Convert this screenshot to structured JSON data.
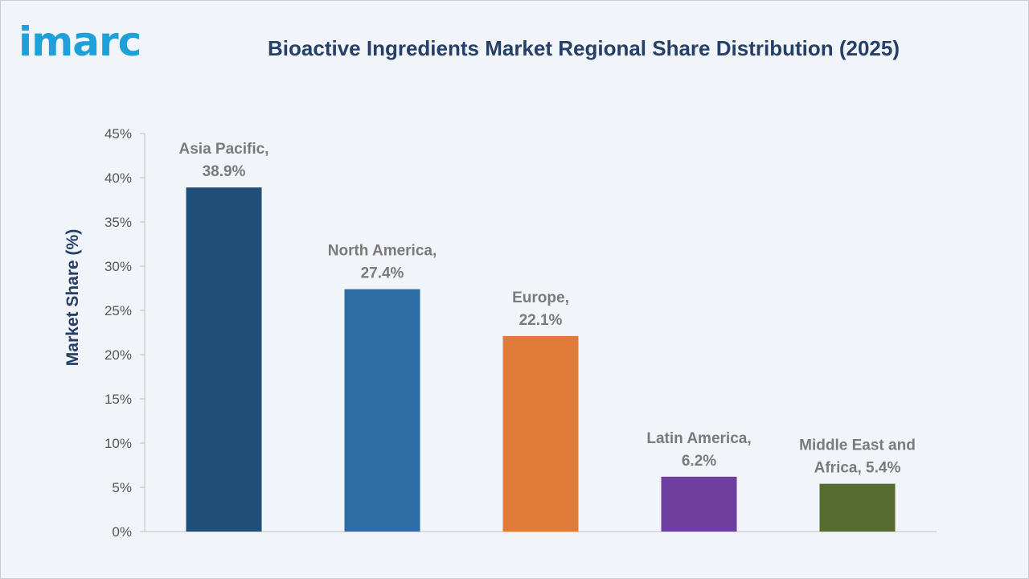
{
  "brand": {
    "logo_text": "imarc"
  },
  "chart_data": {
    "type": "bar",
    "title": "Bioactive Ingredients Market Regional Share Distribution (2025)",
    "xlabel": "",
    "ylabel": "Market Share (%)",
    "ylim": [
      0,
      45
    ],
    "yticks": [
      0,
      5,
      10,
      15,
      20,
      25,
      30,
      35,
      40,
      45
    ],
    "ytick_labels": [
      "0%",
      "5%",
      "10%",
      "15%",
      "20%",
      "25%",
      "30%",
      "35%",
      "40%",
      "45%"
    ],
    "grid": false,
    "legend": "none",
    "categories": [
      "Asia Pacific",
      "North America",
      "Europe",
      "Latin America",
      "Middle East and Africa"
    ],
    "values": [
      38.9,
      27.4,
      22.1,
      6.2,
      5.4
    ],
    "data_labels": [
      [
        "Asia Pacific,",
        "38.9%"
      ],
      [
        "North America,",
        "27.4%"
      ],
      [
        "Europe,",
        "22.1%"
      ],
      [
        "Latin America,",
        "6.2%"
      ],
      [
        "Middle East and",
        "Africa, 5.4%"
      ]
    ],
    "colors": [
      "#1f4e79",
      "#2e6da4",
      "#e07b39",
      "#6f3fa0",
      "#566b2f"
    ]
  }
}
